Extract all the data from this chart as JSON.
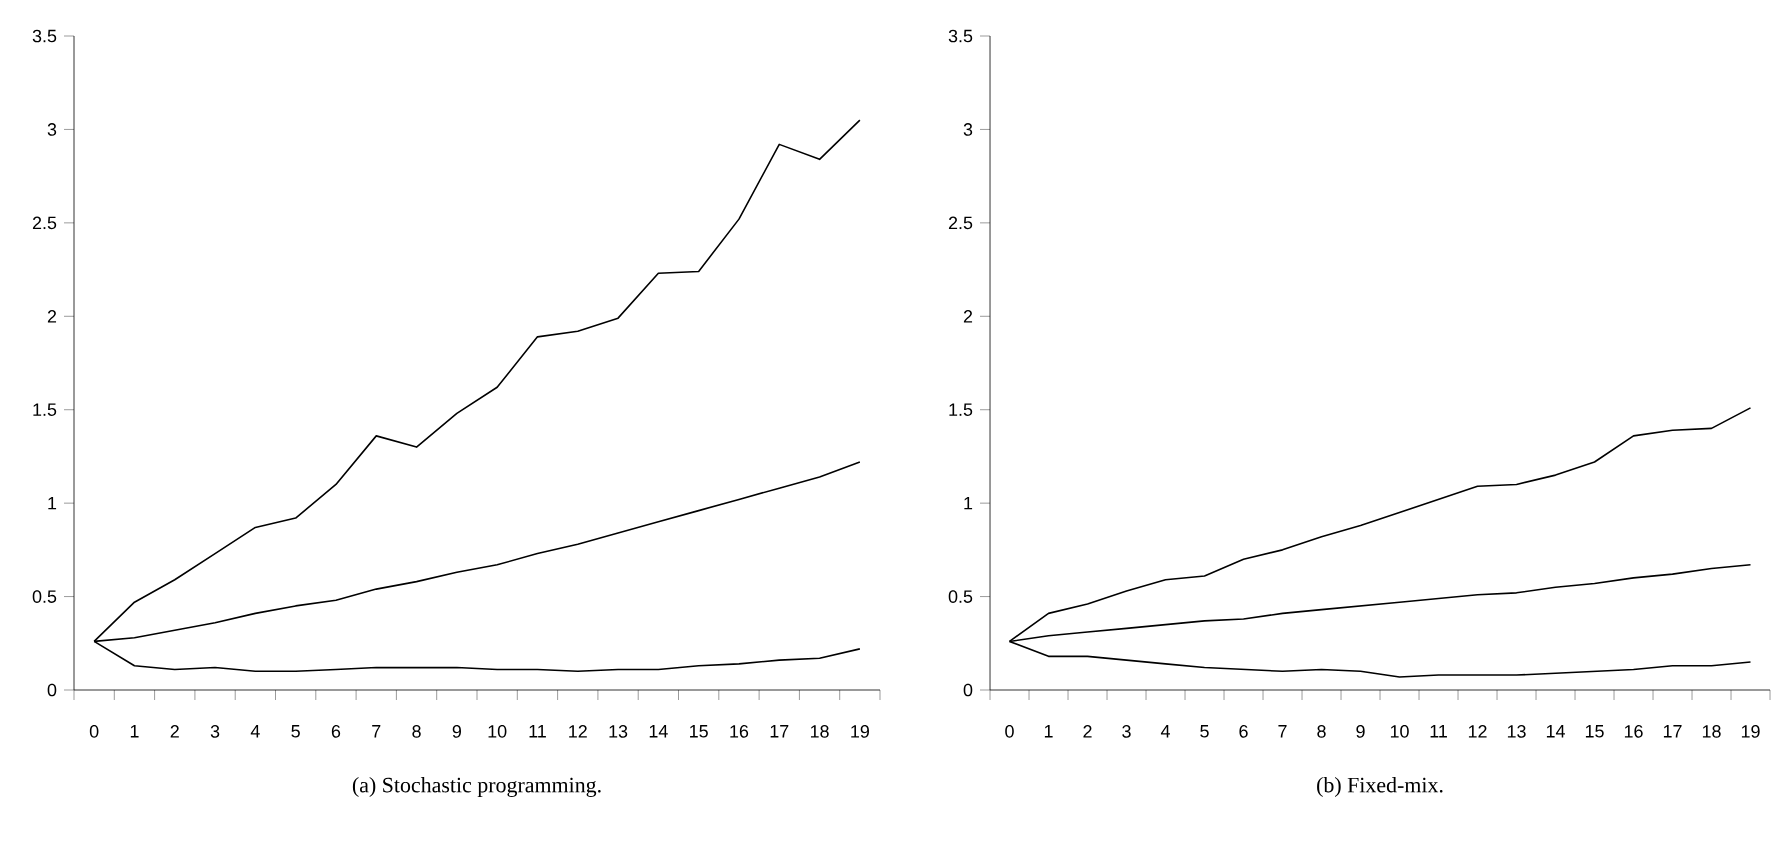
{
  "chart_data": [
    {
      "type": "line",
      "categories": [
        "0",
        "1",
        "2",
        "3",
        "4",
        "5",
        "6",
        "7",
        "8",
        "9",
        "10",
        "11",
        "12",
        "13",
        "14",
        "15",
        "16",
        "17",
        "18",
        "19"
      ],
      "series": [
        {
          "color": "#000000",
          "values": [
            0.26,
            0.47,
            0.59,
            0.73,
            0.87,
            0.92,
            1.1,
            1.36,
            1.3,
            1.48,
            1.62,
            1.89,
            1.92,
            1.99,
            2.23,
            2.24,
            2.52,
            2.92,
            2.84,
            3.05
          ]
        },
        {
          "color": "#000000",
          "values": [
            0.26,
            0.28,
            0.32,
            0.36,
            0.41,
            0.45,
            0.48,
            0.54,
            0.58,
            0.63,
            0.67,
            0.73,
            0.78,
            0.84,
            0.9,
            0.96,
            1.02,
            1.08,
            1.14,
            1.22
          ]
        },
        {
          "color": "#000000",
          "values": [
            0.26,
            0.13,
            0.11,
            0.12,
            0.1,
            0.1,
            0.11,
            0.12,
            0.12,
            0.12,
            0.11,
            0.11,
            0.1,
            0.11,
            0.11,
            0.13,
            0.14,
            0.16,
            0.17,
            0.22
          ]
        }
      ],
      "ylim": [
        0,
        3.5
      ],
      "yticks": [
        0,
        0.5,
        1,
        1.5,
        2,
        2.5,
        3,
        3.5
      ],
      "annotations": [
        "(a) Stochastic programming."
      ]
    },
    {
      "type": "line",
      "categories": [
        "0",
        "1",
        "2",
        "3",
        "4",
        "5",
        "6",
        "7",
        "8",
        "9",
        "10",
        "11",
        "12",
        "13",
        "14",
        "15",
        "16",
        "17",
        "18",
        "19"
      ],
      "series": [
        {
          "color": "#000000",
          "values": [
            0.26,
            0.41,
            0.46,
            0.53,
            0.59,
            0.61,
            0.7,
            0.75,
            0.82,
            0.88,
            0.95,
            1.02,
            1.09,
            1.1,
            1.15,
            1.22,
            1.36,
            1.39,
            1.4,
            1.51
          ]
        },
        {
          "color": "#000000",
          "values": [
            0.26,
            0.29,
            0.31,
            0.33,
            0.35,
            0.37,
            0.38,
            0.41,
            0.43,
            0.45,
            0.47,
            0.49,
            0.51,
            0.52,
            0.55,
            0.57,
            0.6,
            0.62,
            0.65,
            0.67
          ]
        },
        {
          "color": "#000000",
          "values": [
            0.26,
            0.18,
            0.18,
            0.16,
            0.14,
            0.12,
            0.11,
            0.1,
            0.11,
            0.1,
            0.07,
            0.08,
            0.08,
            0.08,
            0.09,
            0.1,
            0.11,
            0.13,
            0.13,
            0.15
          ]
        }
      ],
      "ylim": [
        0,
        3.5
      ],
      "yticks": [
        0,
        0.5,
        1,
        1.5,
        2,
        2.5,
        3,
        3.5
      ],
      "annotations": [
        "(b) Fixed-mix."
      ]
    }
  ]
}
